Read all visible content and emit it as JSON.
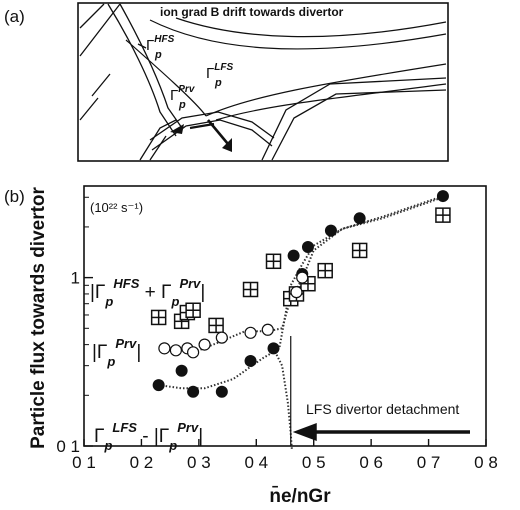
{
  "panel_a": {
    "label": "(a)",
    "title": "ion grad B drift towards divertor",
    "labels": [
      {
        "id": "hfs",
        "base": "Γ",
        "sub": "p",
        "sup": "HFS"
      },
      {
        "id": "prv",
        "base": "Γ",
        "sub": "p",
        "sup": "Prv"
      },
      {
        "id": "lfs",
        "base": "Γ",
        "sub": "p",
        "sup": "LFS"
      }
    ]
  },
  "panel_b": {
    "label": "(b)",
    "unit_label": "(10²² s⁻¹)",
    "annotation": "LFS divertor detachment",
    "curve_labels": [
      {
        "id": "sum",
        "text": "|Γp^HFS + Γp^Prv|",
        "a": "|Γ",
        "b": "p",
        "c": "HFS",
        "d": " + Γ",
        "e": "p",
        "f": "Prv",
        "g": "|"
      },
      {
        "id": "prv",
        "a": "|Γ",
        "b": "p",
        "c": "Prv",
        "g": "|"
      },
      {
        "id": "diff",
        "a": "Γ",
        "b": "p",
        "c": "LFS",
        "d": " - |Γ",
        "e": "p",
        "f": "Prv",
        "g": "|"
      }
    ]
  },
  "chart_data": {
    "type": "scatter",
    "ylabel": "Particle flux towards divertor",
    "xlabel": "n̄e/nGr",
    "xlim": [
      0.1,
      0.8
    ],
    "ylim": [
      0.1,
      3.5
    ],
    "y_scale": "log",
    "x_ticks": [
      0.1,
      0.2,
      0.3,
      0.4,
      0.5,
      0.6,
      0.7,
      0.8
    ],
    "x_tick_labels": [
      "0 1",
      "0 2",
      "0 3",
      "0 4",
      "0 5",
      "0 6",
      "0 7",
      "0 8"
    ],
    "y_ticks": [
      0.1,
      1
    ],
    "y_tick_labels": [
      "0 1",
      "1"
    ],
    "detachment_x": 0.46,
    "series": [
      {
        "marker": "boxed-plus",
        "points": [
          [
            0.23,
            0.58
          ],
          [
            0.27,
            0.55
          ],
          [
            0.28,
            0.62
          ],
          [
            0.29,
            0.64
          ],
          [
            0.33,
            0.52
          ],
          [
            0.39,
            0.85
          ],
          [
            0.43,
            1.25
          ],
          [
            0.46,
            0.75
          ],
          [
            0.47,
            0.8
          ],
          [
            0.49,
            0.92
          ],
          [
            0.52,
            1.1
          ],
          [
            0.58,
            1.45
          ],
          [
            0.725,
            2.35
          ]
        ]
      },
      {
        "marker": "filled-circle",
        "points": [
          [
            0.23,
            0.23
          ],
          [
            0.27,
            0.28
          ],
          [
            0.29,
            0.21
          ],
          [
            0.34,
            0.21
          ],
          [
            0.39,
            0.32
          ],
          [
            0.43,
            0.38
          ],
          [
            0.465,
            1.35
          ],
          [
            0.48,
            1.05
          ],
          [
            0.49,
            1.52
          ],
          [
            0.53,
            1.9
          ],
          [
            0.58,
            2.25
          ],
          [
            0.725,
            3.05
          ]
        ]
      },
      {
        "marker": "open-circle",
        "points": [
          [
            0.24,
            0.38
          ],
          [
            0.26,
            0.37
          ],
          [
            0.28,
            0.38
          ],
          [
            0.29,
            0.36
          ],
          [
            0.31,
            0.4
          ],
          [
            0.34,
            0.44
          ],
          [
            0.39,
            0.47
          ],
          [
            0.42,
            0.49
          ],
          [
            0.47,
            0.82
          ],
          [
            0.48,
            1.0
          ]
        ]
      }
    ],
    "dotted_curves": [
      [
        [
          0.23,
          0.38
        ],
        [
          0.26,
          0.37
        ],
        [
          0.3,
          0.37
        ],
        [
          0.34,
          0.42
        ],
        [
          0.38,
          0.48
        ],
        [
          0.42,
          0.48
        ],
        [
          0.445,
          0.5
        ],
        [
          0.46,
          0.75
        ],
        [
          0.48,
          0.98
        ],
        [
          0.5,
          1.45
        ],
        [
          0.55,
          1.95
        ],
        [
          0.62,
          2.25
        ],
        [
          0.725,
          3.0
        ]
      ],
      [
        [
          0.23,
          0.23
        ],
        [
          0.27,
          0.22
        ],
        [
          0.31,
          0.22
        ],
        [
          0.36,
          0.25
        ],
        [
          0.41,
          0.33
        ],
        [
          0.44,
          0.38
        ],
        [
          0.46,
          0.9
        ],
        [
          0.48,
          1.2
        ],
        [
          0.5,
          1.55
        ],
        [
          0.55,
          1.95
        ],
        [
          0.62,
          2.3
        ],
        [
          0.725,
          3.05
        ]
      ],
      [
        [
          0.43,
          0.38
        ],
        [
          0.445,
          0.3
        ],
        [
          0.455,
          0.18
        ],
        [
          0.46,
          0.12
        ],
        [
          0.462,
          0.095
        ]
      ]
    ]
  }
}
